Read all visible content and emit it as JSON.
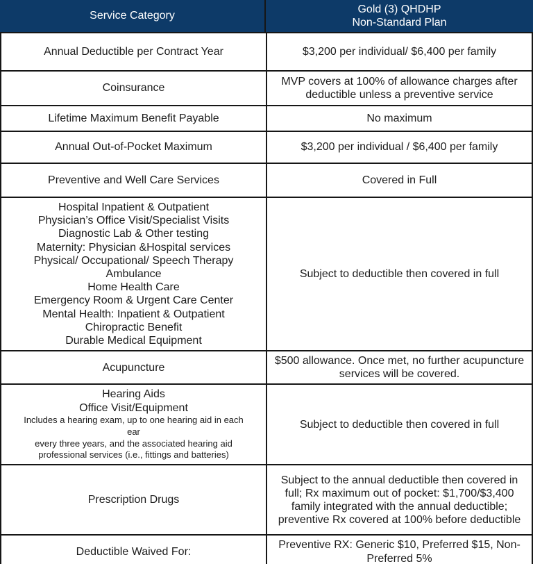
{
  "colors": {
    "header_bg": "#0d3a68",
    "header_text": "#ffffff",
    "border": "#161616",
    "body_text": "#1c1c1c",
    "bottom_bar": "#0d3a68"
  },
  "table": {
    "header": {
      "col1": "Service Category",
      "col2": "Gold (3) QHDHP\nNon-Standard Plan"
    },
    "rows": [
      {
        "category": "Annual Deductible per Contract Year",
        "value": "$3,200 per individual/ $6,400 per family"
      },
      {
        "category": "Coinsurance",
        "value": "MVP covers at 100% of allowance charges after deductible unless a preventive service"
      },
      {
        "category": "Lifetime Maximum Benefit Payable",
        "value": "No maximum"
      },
      {
        "category": "Annual Out-of-Pocket Maximum",
        "value": "$3,200 per individual / $6,400 per family"
      },
      {
        "category": "Preventive and Well Care Services",
        "value": "Covered in Full"
      },
      {
        "category": "Hospital Inpatient & Outpatient\nPhysician’s Office Visit/Specialist Visits\nDiagnostic Lab & Other testing\nMaternity: Physician &Hospital services\nPhysical/ Occupational/ Speech Therapy\nAmbulance\nHome Health Care\nEmergency Room & Urgent Care Center\nMental Health: Inpatient & Outpatient\nChiropractic Benefit\nDurable Medical Equipment",
        "value": "Subject to deductible then covered in full"
      },
      {
        "category": "Acupuncture",
        "value": "$500 allowance. Once met, no further acupuncture services will be covered."
      },
      {
        "category": "Hearing Aids\nOffice Visit/Equipment",
        "note": "Includes a hearing exam, up to one hearing aid in each\near\nevery three years, and the associated hearing aid\nprofessional services (i.e., fittings and batteries)",
        "value": "Subject to deductible then covered in full"
      },
      {
        "category": "Prescription Drugs",
        "value": "Subject to the annual deductible then covered in full; Rx maximum out of pocket: $1,700/$3,400 family integrated with the annual deductible; preventive Rx covered at 100% before deductible"
      },
      {
        "category": "Deductible Waived For:",
        "value": "Preventive RX: Generic $10, Preferred $15, Non-Preferred 5%"
      }
    ]
  }
}
